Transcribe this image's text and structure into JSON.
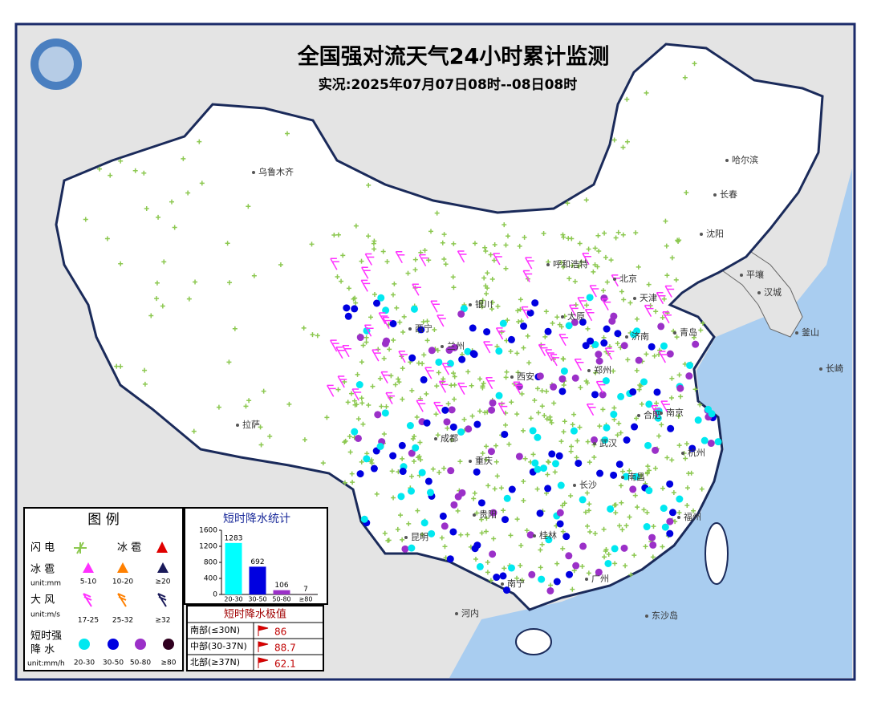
{
  "header": {
    "title": "全国强对流天气24小时累计监测",
    "subtitle": "实况:2025年07月07日08时--08日08时"
  },
  "map_labels": [
    "乌鲁木齐",
    "哈尔滨",
    "长春",
    "沈阳",
    "平壤",
    "汉城",
    "釜山",
    "长崎",
    "呼和浩特",
    "北京",
    "天津",
    "太原",
    "银川",
    "西宁",
    "兰州",
    "西安",
    "郑州",
    "济南",
    "青岛",
    "合肥",
    "南京",
    "拉萨",
    "成都",
    "重庆",
    "武汉",
    "长沙",
    "南昌",
    "杭州",
    "福州",
    "贵阳",
    "昆明",
    "南宁",
    "广州",
    "桂林",
    "河内",
    "东沙岛"
  ],
  "legend": {
    "title": "图 例",
    "lightning": "闪 电",
    "hail_title": "冰 雹",
    "hail": {
      "label": "冰 雹",
      "unit": "unit:mm",
      "classes": [
        "5-10",
        "10-20",
        "≥20"
      ]
    },
    "wind": {
      "label": "大 风",
      "unit": "unit:m/s",
      "classes": [
        "17-25",
        "25-32",
        "≥32"
      ]
    },
    "rain": {
      "label": [
        "短时强",
        "降 水"
      ],
      "unit": "unit:mm/h",
      "classes": [
        "20-30",
        "30-50",
        "50-80",
        "≥80"
      ]
    }
  },
  "chart_data": {
    "type": "bar",
    "title": "短时降水统计",
    "categories": [
      "20-30",
      "30-50",
      "50-80",
      "≥80"
    ],
    "values": [
      1283,
      692,
      106,
      7
    ],
    "colors": [
      "#00ffff",
      "#0000e0",
      "#9b30c8",
      "#300020"
    ],
    "ylim": [
      0,
      1600
    ],
    "yticks": [
      0,
      400,
      800,
      1200,
      1600
    ]
  },
  "extremes": {
    "title": "短时降水极值",
    "rows": [
      {
        "region": "南部(≤30N)",
        "value": 86
      },
      {
        "region": "中部(30-37N)",
        "value": 88.7
      },
      {
        "region": "北部(≥37N)",
        "value": 62.1
      }
    ]
  }
}
